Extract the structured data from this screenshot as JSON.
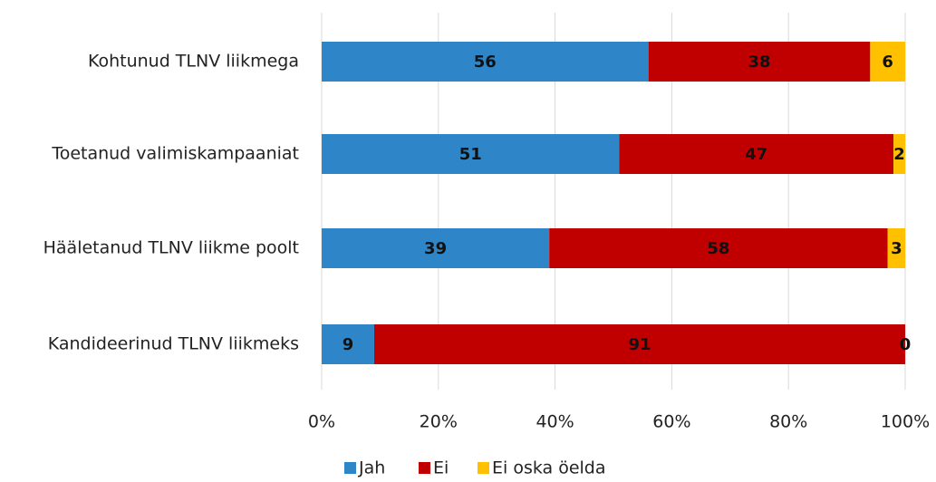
{
  "chart_data": {
    "type": "bar",
    "orientation": "horizontal",
    "stacked": true,
    "categories": [
      "Kohtunud TLNV liikmega",
      "Toetanud valimiskampaaniat",
      "Hääletanud TLNV liikme poolt",
      "Kandideerinud TLNV liikmeks"
    ],
    "series": [
      {
        "name": "Jah",
        "color": "#2e86c8",
        "values": [
          56,
          51,
          39,
          9
        ]
      },
      {
        "name": "Ei",
        "color": "#c00000",
        "values": [
          38,
          47,
          58,
          91
        ]
      },
      {
        "name": "Ei oska öelda",
        "color": "#ffc000",
        "values": [
          6,
          2,
          3,
          0
        ]
      }
    ],
    "xlim": [
      0,
      100
    ],
    "xticks": [
      {
        "value": 0,
        "label": "0%"
      },
      {
        "value": 20,
        "label": "20%"
      },
      {
        "value": 40,
        "label": "40%"
      },
      {
        "value": 60,
        "label": "60%"
      },
      {
        "value": 80,
        "label": "80%"
      },
      {
        "value": 100,
        "label": "100%"
      }
    ],
    "grid": true,
    "legend": "bottom"
  }
}
